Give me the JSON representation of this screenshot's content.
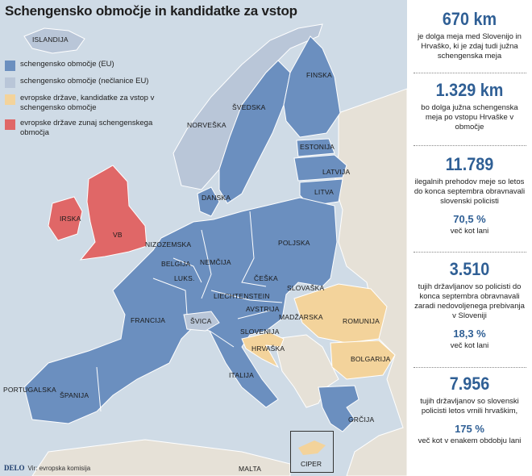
{
  "title": "Schengensko območje in kandidatke za vstop",
  "colors": {
    "schengen_eu": "#6b8fbf",
    "schengen_non_eu": "#b9c6d8",
    "candidate": "#f3d39b",
    "outside": "#e06767",
    "other_land": "#e6e1d7",
    "sea": "#cfdbe6",
    "stat_accent": "#2f5f95"
  },
  "legend": [
    {
      "label": "schengensko območje (EU)",
      "color": "#6b8fbf"
    },
    {
      "label": "schengensko območje (nečlanice EU)",
      "color": "#b9c6d8"
    },
    {
      "label": "evropske države, kandidatke za vstop v schengensko območje",
      "color": "#f3d39b"
    },
    {
      "label": "evropske države zunaj schengenskega območja",
      "color": "#e06767"
    }
  ],
  "countries": {
    "islandija": "ISLANDIJA",
    "finska": "FINSKA",
    "svedska": "ŠVEDSKA",
    "norveska": "NORVEŠKA",
    "estonija": "ESTONIJA",
    "latvija": "LATVIJA",
    "litva": "LITVA",
    "danska": "DANSKA",
    "irska": "IRSKA",
    "vb": "VB",
    "poljska": "POLJSKA",
    "nizozemska": "NIZOZEMSKA",
    "nemcija": "NEMČIJA",
    "belgija": "BELGIJA",
    "luks": "LUKS.",
    "ceska": "ČEŠKA",
    "slovaska": "SLOVAŠKA",
    "liechtenstein": "LIECHTENSTEIN",
    "avstrija": "AVSTRIJA",
    "francija": "FRANCIJA",
    "svica": "ŠVICA",
    "madzarska": "MADŽARSKA",
    "romunija": "ROMUNIJA",
    "slovenija": "SLOVENIJA",
    "hrvaska": "HRVAŠKA",
    "bolgarija": "BOLGARIJA",
    "italija": "ITALIJA",
    "portugalska": "PORTUGALSKA",
    "spanija": "ŠPANIJA",
    "grcija": "GRČIJA",
    "malta": "MALTA",
    "ciper": "CIPER"
  },
  "source": {
    "brand": "DELO",
    "text": "Vir: evropska komisija"
  },
  "stats": [
    {
      "value": "670 km",
      "text": "je dolga meja med Slovenijo in Hrvaško, ki je zdaj tudi južna schengenska meja"
    },
    {
      "value": "1.329 km",
      "text": "bo dolga južna schengenska meja po vstopu Hrvaške v območje"
    },
    {
      "value": "11.789",
      "text": "ilegalnih prehodov meje so letos do konca septembra obravnavali slovenski policisti",
      "pct": "70,5 %",
      "sub": "več kot lani"
    },
    {
      "value": "3.510",
      "text": "tujih državljanov so policisti do konca septembra obravnavali zaradi nedovoljenega prebivanja v Sloveniji",
      "pct": "18,3 %",
      "sub": "več kot lani"
    },
    {
      "value": "7.956",
      "text": "tujih državljanov so slovenski policisti letos vrnili hrvaškim,",
      "pct": "175 %",
      "sub": "več kot v enakem obdobju lani"
    }
  ]
}
